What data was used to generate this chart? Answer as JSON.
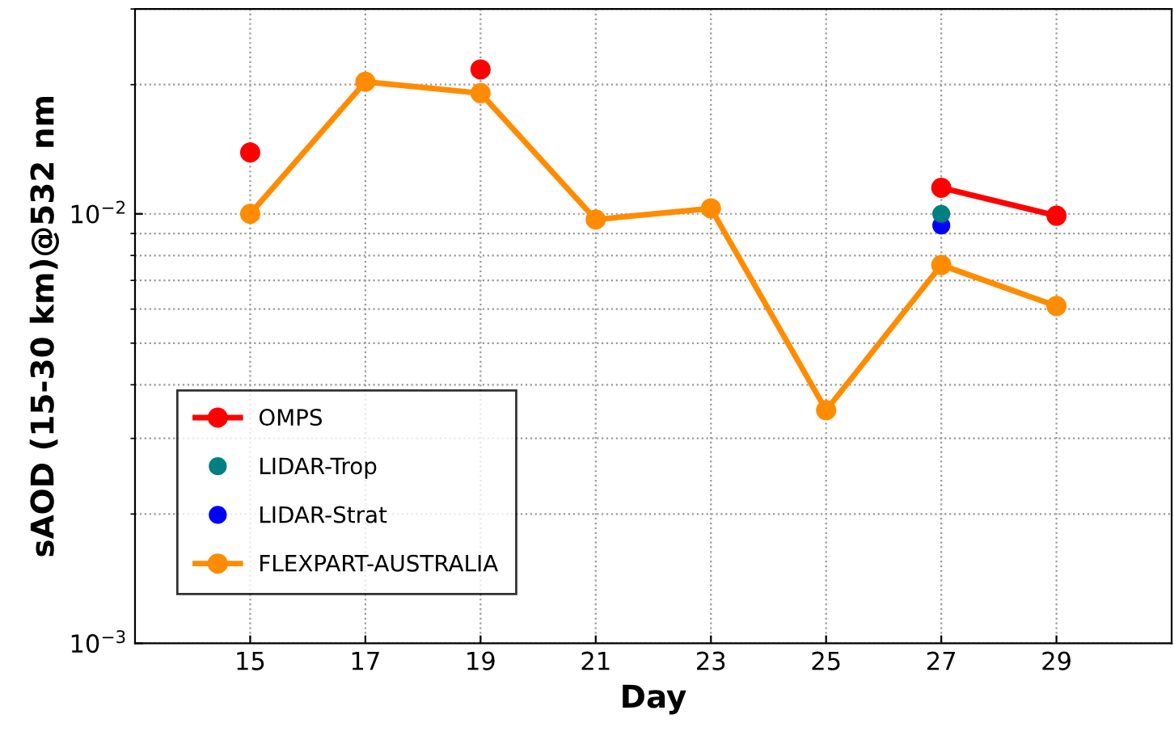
{
  "chart_data": {
    "type": "line",
    "xlabel": "Day",
    "ylabel": "sAOD (15-30 km)@532 nm",
    "log": "y",
    "grid": true,
    "legend": "bottom left",
    "marker": "circle",
    "line_style": "solid",
    "xlim": [
      13,
      31
    ],
    "xticks": [
      15,
      17,
      19,
      21,
      23,
      25,
      27,
      29
    ],
    "ylim": [
      0.001,
      0.03
    ],
    "yticks": [
      {
        "value": 0.001,
        "label": "10$^{−3}$"
      },
      {
        "value": 0.01,
        "label": "10$^{−2}$"
      }
    ],
    "series": [
      {
        "name": "OMPS",
        "color": "#ff0000",
        "x": [
          15,
          17,
          19,
          21,
          23,
          25,
          27,
          29
        ],
        "values": [
          0.0139,
          null,
          0.0217,
          null,
          null,
          null,
          0.0115,
          0.0099
        ]
      },
      {
        "name": "LIDAR-Trop",
        "color": "#008080",
        "type": "scatter",
        "x": [
          27
        ],
        "values": [
          0.01
        ]
      },
      {
        "name": "LIDAR-Strat",
        "color": "#0000ff",
        "type": "scatter",
        "x": [
          27
        ],
        "values": [
          0.0094
        ]
      },
      {
        "name": "FLEXPART-AUSTRALIA",
        "color": "#ff8c00",
        "x": [
          15,
          17,
          19,
          21,
          23,
          25,
          27,
          29
        ],
        "values": [
          0.01,
          0.0203,
          0.0191,
          0.0097,
          0.0103,
          0.00349,
          0.0076,
          0.0061
        ]
      }
    ]
  }
}
